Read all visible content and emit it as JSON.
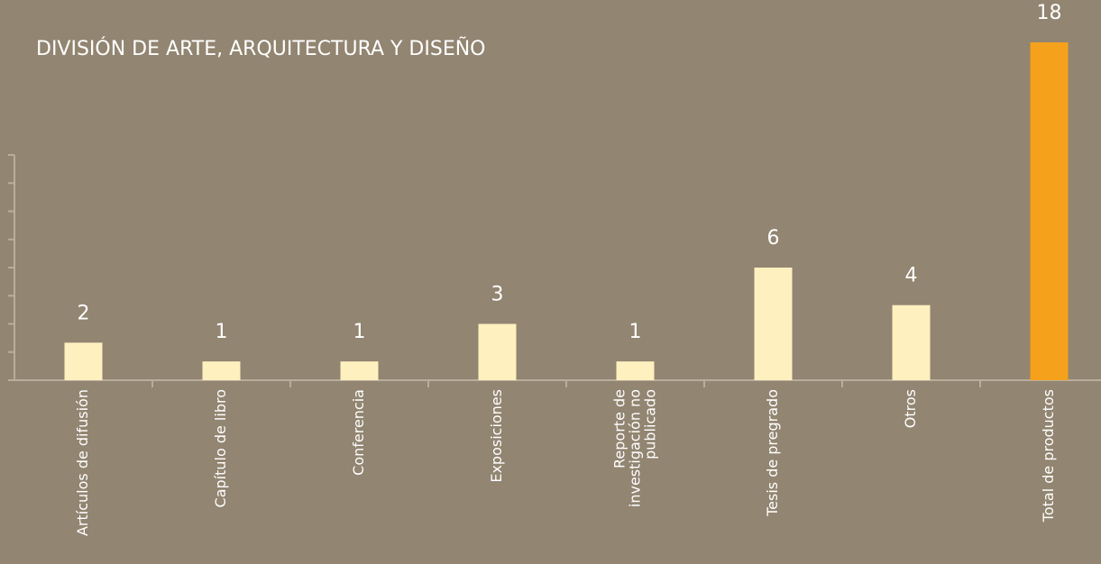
{
  "chart_data": {
    "type": "bar",
    "title": "DIVISIÓN DE ARTE, ARQUITECTURA Y DISEÑO",
    "categories": [
      "Artículos de difusión",
      "Capítulo de libro",
      "Conferencia",
      "Exposiciones",
      "Reporte de investigación no publicado",
      "Tesis de pregrado",
      "Otros",
      "Total de productos"
    ],
    "values": [
      2,
      1,
      1,
      3,
      1,
      6,
      4,
      18
    ],
    "colors": [
      "#fff0bf",
      "#fff0bf",
      "#fff0bf",
      "#fff0bf",
      "#fff0bf",
      "#fff0bf",
      "#fff0bf",
      "#f5a11c"
    ],
    "ylim": [
      0,
      18
    ],
    "yticks": [
      0,
      1.5,
      3,
      4.5,
      6,
      7.5,
      9,
      10.5,
      12
    ]
  }
}
